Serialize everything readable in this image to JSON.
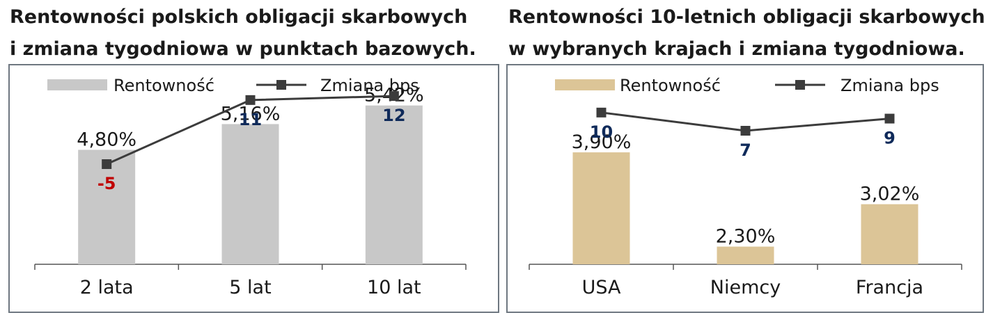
{
  "chart_data": [
    {
      "type": "bar",
      "title": [
        "Rentowności polskich obligacji skarbowych",
        "i zmiana tygodniowa w punktach bazowych."
      ],
      "categories": [
        "2 lata",
        "5 lat",
        "10 lat"
      ],
      "series": [
        {
          "name": "Rentowność",
          "kind": "bar",
          "values": [
            4.8,
            5.16,
            5.42
          ],
          "labels": [
            "4,80%",
            "5,16%",
            "5,42%"
          ],
          "color": "#c8c8c8"
        },
        {
          "name": "Zmiana bps",
          "kind": "line",
          "values": [
            -5,
            11,
            12
          ],
          "labels": [
            "-5",
            "11",
            "12"
          ],
          "color": "#3c3c3c",
          "label_colors": [
            "#c00000",
            "#0f2a5a",
            "#0f2a5a"
          ]
        }
      ],
      "bar_ylim": [
        3.2,
        6.0
      ],
      "line_ylim": [
        -30,
        20
      ],
      "legend_position": "top"
    },
    {
      "type": "bar",
      "title": [
        "Rentowności 10-letnich obligacji skarbowych",
        "w wybranych krajach i zmiana tygodniowa."
      ],
      "categories": [
        "USA",
        "Niemcy",
        "Francja"
      ],
      "series": [
        {
          "name": "Rentowność",
          "kind": "bar",
          "values": [
            3.9,
            2.3,
            3.02
          ],
          "labels": [
            "3,90%",
            "2,30%",
            "3,02%"
          ],
          "color": "#dcc597"
        },
        {
          "name": "Zmiana bps",
          "kind": "line",
          "values": [
            10,
            7,
            9
          ],
          "labels": [
            "10",
            "7",
            "9"
          ],
          "color": "#3c3c3c",
          "label_colors": [
            "#0f2a5a",
            "#0f2a5a",
            "#0f2a5a"
          ]
        }
      ],
      "bar_ylim": [
        2.0,
        5.4
      ],
      "line_ylim": [
        -15,
        18
      ],
      "legend_position": "top"
    }
  ]
}
